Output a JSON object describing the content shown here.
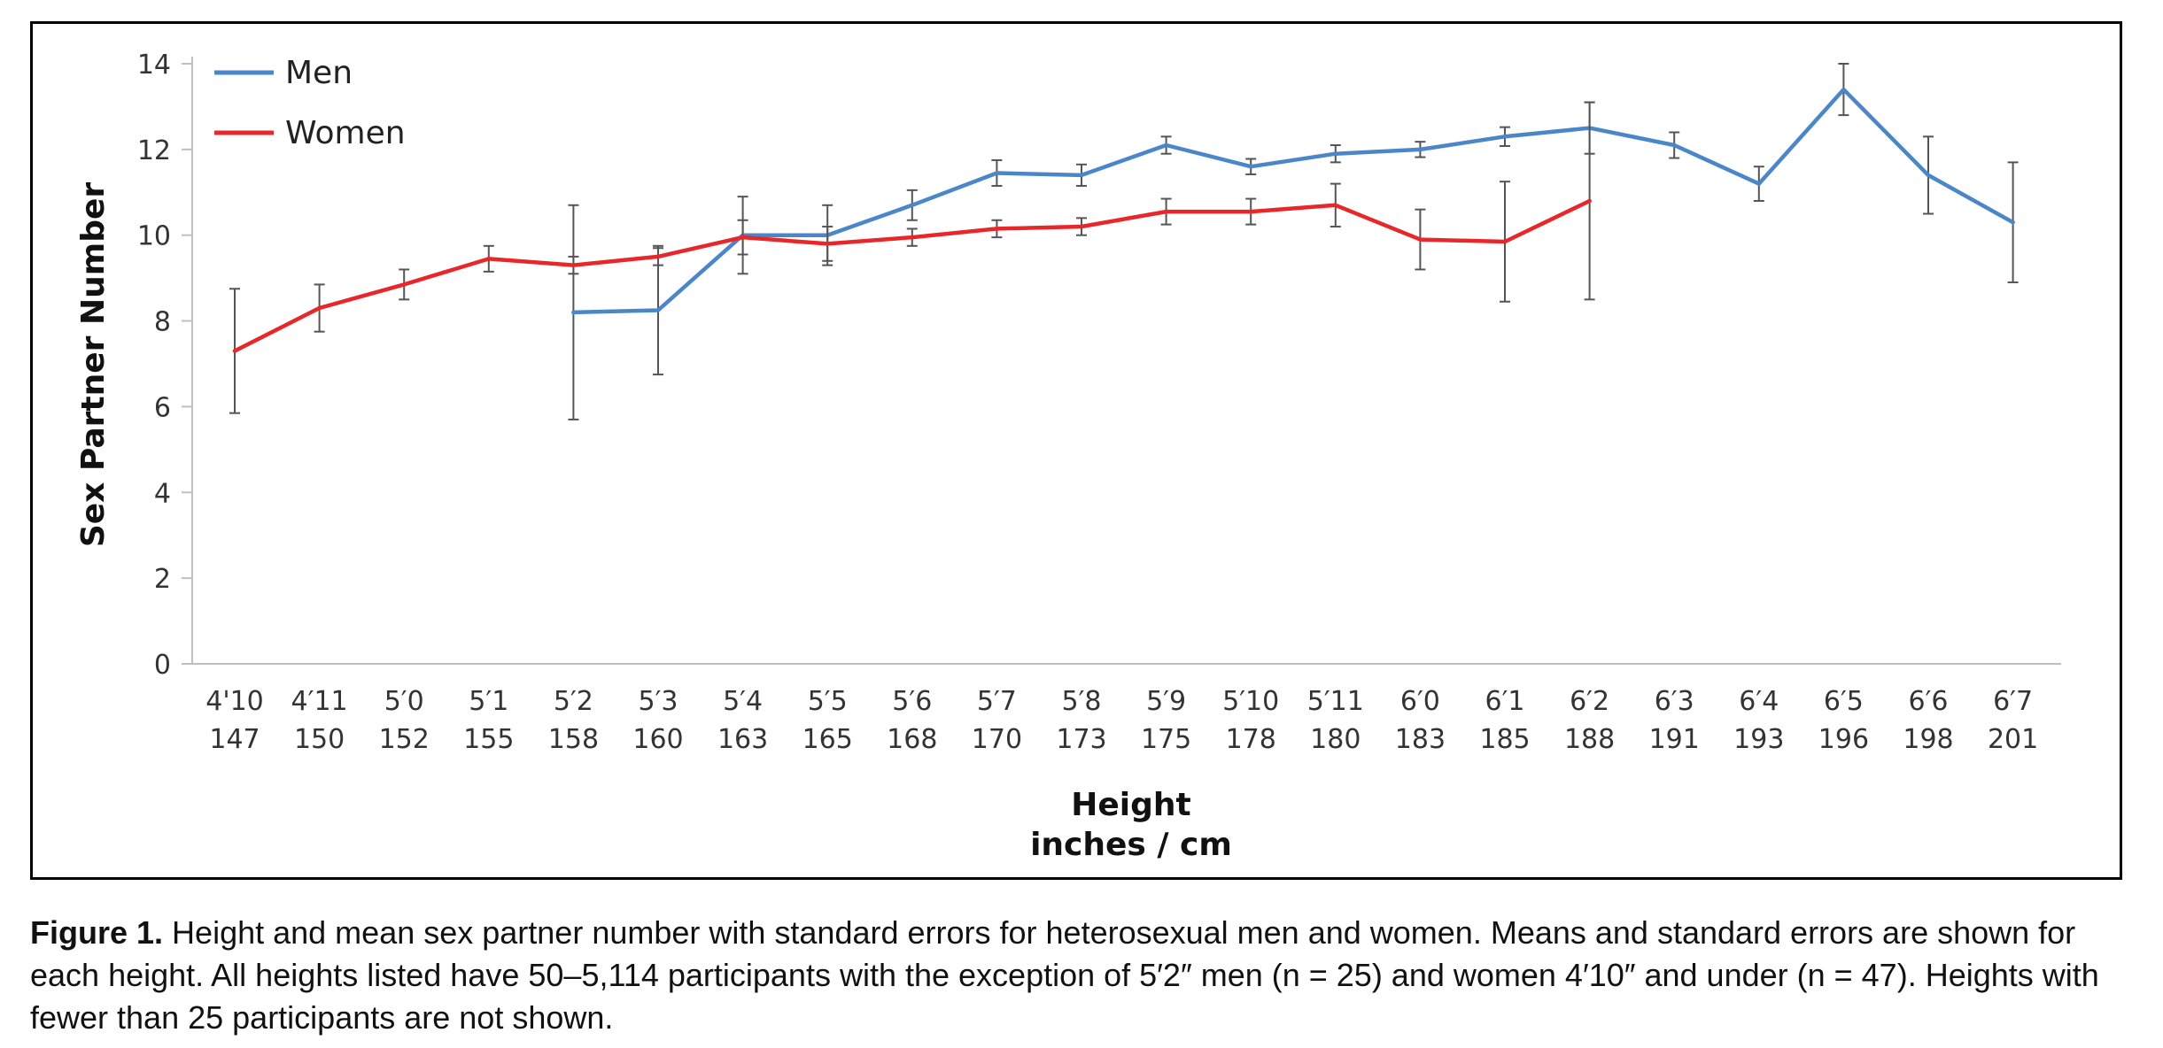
{
  "caption": {
    "label": "Figure 1.",
    "text": "Height and mean sex partner number with standard errors for heterosexual men and women. Means and standard errors are shown for each height. All heights listed have 50–5,114 participants with the exception of 5′2″ men (n = 25) and women 4′10″ and under (n = 47). Heights with fewer than 25 participants are not shown."
  },
  "chart_data": {
    "type": "line",
    "title": "",
    "ylabel": "Sex Partner Number",
    "xlabel_lines": [
      "Height",
      "inches / cm"
    ],
    "ylim": [
      0,
      14
    ],
    "yticks": [
      0,
      2,
      4,
      6,
      8,
      10,
      12,
      14
    ],
    "grid": false,
    "legend_position": "top-left",
    "categories": [
      {
        "inches": "4'10",
        "cm": "147"
      },
      {
        "inches": "4′11",
        "cm": "150"
      },
      {
        "inches": "5′0",
        "cm": "152"
      },
      {
        "inches": "5′1",
        "cm": "155"
      },
      {
        "inches": "5′2",
        "cm": "158"
      },
      {
        "inches": "5′3",
        "cm": "160"
      },
      {
        "inches": "5′4",
        "cm": "163"
      },
      {
        "inches": "5′5",
        "cm": "165"
      },
      {
        "inches": "5′6",
        "cm": "168"
      },
      {
        "inches": "5′7",
        "cm": "170"
      },
      {
        "inches": "5′8",
        "cm": "173"
      },
      {
        "inches": "5′9",
        "cm": "175"
      },
      {
        "inches": "5′10",
        "cm": "178"
      },
      {
        "inches": "5′11",
        "cm": "180"
      },
      {
        "inches": "6′0",
        "cm": "183"
      },
      {
        "inches": "6′1",
        "cm": "185"
      },
      {
        "inches": "6′2",
        "cm": "188"
      },
      {
        "inches": "6′3",
        "cm": "191"
      },
      {
        "inches": "6′4",
        "cm": "193"
      },
      {
        "inches": "6′5",
        "cm": "196"
      },
      {
        "inches": "6′6",
        "cm": "198"
      },
      {
        "inches": "6′7",
        "cm": "201"
      }
    ],
    "series": [
      {
        "name": "Men",
        "color": "#4a86c8",
        "values": [
          null,
          null,
          null,
          null,
          8.2,
          8.25,
          10.0,
          10.0,
          10.7,
          11.45,
          11.4,
          12.1,
          11.6,
          11.9,
          12.0,
          12.3,
          12.5,
          12.1,
          11.2,
          13.4,
          11.4,
          10.3
        ],
        "error": [
          null,
          null,
          null,
          null,
          2.5,
          1.5,
          0.9,
          0.7,
          0.35,
          0.3,
          0.25,
          0.2,
          0.18,
          0.2,
          0.18,
          0.22,
          0.6,
          0.3,
          0.4,
          0.6,
          0.9,
          1.4
        ]
      },
      {
        "name": "Women",
        "color": "#e8272a",
        "values": [
          7.3,
          8.3,
          8.85,
          9.45,
          9.3,
          9.5,
          9.95,
          9.8,
          9.95,
          10.15,
          10.2,
          10.55,
          10.55,
          10.7,
          9.9,
          9.85,
          10.8,
          null,
          null,
          null,
          null,
          null
        ],
        "error": [
          1.45,
          0.55,
          0.35,
          0.3,
          0.2,
          0.2,
          0.4,
          0.4,
          0.2,
          0.2,
          0.2,
          0.3,
          0.3,
          0.5,
          0.7,
          1.4,
          2.3,
          null,
          null,
          null,
          null,
          null
        ]
      }
    ]
  }
}
